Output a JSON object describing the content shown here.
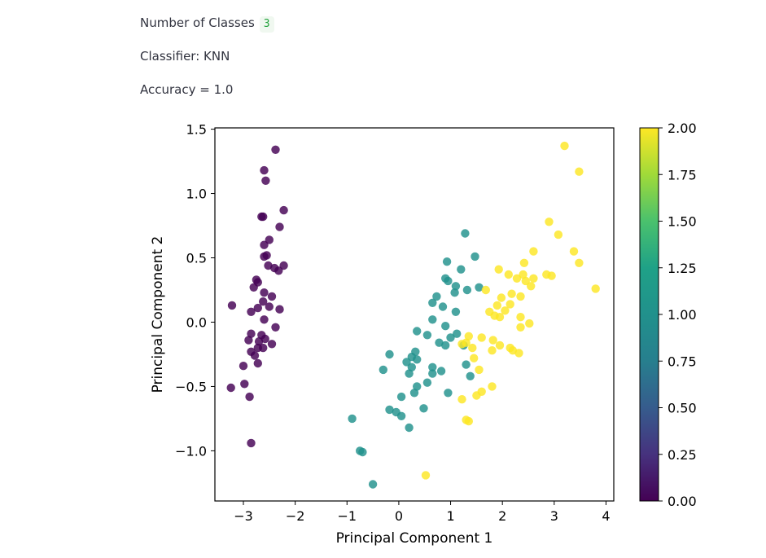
{
  "controls": {
    "classes_label": "Number of Classes",
    "classes_value": "3",
    "classifier_text": "Classifier: KNN",
    "accuracy_text": "Accuracy = 1.0"
  },
  "chart_data": {
    "type": "scatter",
    "title": "",
    "xlabel": "Principal Component 1",
    "ylabel": "Principal Component 2",
    "xlim": [
      -3.55,
      4.15
    ],
    "ylim": [
      -1.39,
      1.51
    ],
    "xticks": [
      -3,
      -2,
      -1,
      0,
      1,
      2,
      3,
      4
    ],
    "xtick_labels": [
      "−3",
      "−2",
      "−1",
      "0",
      "1",
      "2",
      "3",
      "4"
    ],
    "yticks": [
      1.5,
      1.0,
      0.5,
      0.0,
      -0.5,
      -1.0
    ],
    "ytick_labels": [
      "1.5",
      "1.0",
      "0.5",
      "0.0",
      "−0.5",
      "−1.0"
    ],
    "grid": false,
    "colormap": "viridis",
    "colors": {
      "class_0": "#440154",
      "class_1": "#21918c",
      "class_2": "#fde725"
    },
    "colorbar": {
      "range": [
        0.0,
        2.0
      ],
      "ticks": [
        2.0,
        1.75,
        1.5,
        1.25,
        1.0,
        0.75,
        0.5,
        0.25,
        0.0
      ],
      "tick_labels": [
        "2.00",
        "1.75",
        "1.50",
        "1.25",
        "1.00",
        "0.75",
        "0.50",
        "0.25",
        "0.00"
      ]
    },
    "series": [
      {
        "class": 0,
        "points": [
          [
            -2.38,
            1.34
          ],
          [
            -2.6,
            1.18
          ],
          [
            -2.57,
            1.1
          ],
          [
            -2.65,
            0.82
          ],
          [
            -2.62,
            0.82
          ],
          [
            -2.22,
            0.87
          ],
          [
            -2.3,
            0.74
          ],
          [
            -2.5,
            0.64
          ],
          [
            -2.6,
            0.6
          ],
          [
            -2.55,
            0.52
          ],
          [
            -2.6,
            0.51
          ],
          [
            -2.52,
            0.44
          ],
          [
            -2.4,
            0.42
          ],
          [
            -2.32,
            0.4
          ],
          [
            -2.22,
            0.44
          ],
          [
            -2.75,
            0.33
          ],
          [
            -2.8,
            0.27
          ],
          [
            -2.72,
            0.31
          ],
          [
            -2.6,
            0.23
          ],
          [
            -2.45,
            0.2
          ],
          [
            -2.62,
            0.16
          ],
          [
            -2.5,
            0.12
          ],
          [
            -2.3,
            0.1
          ],
          [
            -2.72,
            0.11
          ],
          [
            -2.85,
            0.08
          ],
          [
            -3.22,
            0.13
          ],
          [
            -2.6,
            0.02
          ],
          [
            -2.38,
            -0.04
          ],
          [
            -2.85,
            -0.09
          ],
          [
            -2.65,
            -0.1
          ],
          [
            -2.9,
            -0.14
          ],
          [
            -2.7,
            -0.15
          ],
          [
            -2.58,
            -0.13
          ],
          [
            -2.45,
            -0.17
          ],
          [
            -2.72,
            -0.2
          ],
          [
            -2.62,
            -0.2
          ],
          [
            -2.85,
            -0.23
          ],
          [
            -2.78,
            -0.26
          ],
          [
            -3.0,
            -0.34
          ],
          [
            -2.72,
            -0.32
          ],
          [
            -3.24,
            -0.51
          ],
          [
            -2.98,
            -0.48
          ],
          [
            -2.88,
            -0.58
          ],
          [
            -2.85,
            -0.94
          ]
        ]
      },
      {
        "class": 1,
        "points": [
          [
            1.28,
            0.69
          ],
          [
            1.47,
            0.51
          ],
          [
            0.93,
            0.47
          ],
          [
            1.2,
            0.41
          ],
          [
            0.9,
            0.34
          ],
          [
            0.95,
            0.32
          ],
          [
            1.1,
            0.28
          ],
          [
            1.32,
            0.25
          ],
          [
            1.55,
            0.27
          ],
          [
            1.08,
            0.23
          ],
          [
            0.73,
            0.2
          ],
          [
            0.65,
            0.15
          ],
          [
            0.85,
            0.12
          ],
          [
            1.1,
            0.08
          ],
          [
            0.65,
            0.02
          ],
          [
            0.9,
            -0.03
          ],
          [
            0.35,
            -0.07
          ],
          [
            0.55,
            -0.1
          ],
          [
            1.0,
            -0.12
          ],
          [
            1.12,
            -0.09
          ],
          [
            0.78,
            -0.16
          ],
          [
            0.9,
            -0.18
          ],
          [
            1.25,
            -0.18
          ],
          [
            0.32,
            -0.23
          ],
          [
            -0.18,
            -0.25
          ],
          [
            0.25,
            -0.27
          ],
          [
            0.35,
            -0.29
          ],
          [
            0.15,
            -0.31
          ],
          [
            1.3,
            -0.33
          ],
          [
            0.65,
            -0.35
          ],
          [
            0.25,
            -0.35
          ],
          [
            -0.3,
            -0.37
          ],
          [
            0.2,
            -0.4
          ],
          [
            0.65,
            -0.4
          ],
          [
            0.82,
            -0.38
          ],
          [
            1.38,
            -0.42
          ],
          [
            0.55,
            -0.47
          ],
          [
            0.35,
            -0.5
          ],
          [
            0.3,
            -0.55
          ],
          [
            0.95,
            -0.55
          ],
          [
            0.05,
            -0.58
          ],
          [
            0.48,
            -0.67
          ],
          [
            -0.18,
            -0.68
          ],
          [
            -0.05,
            -0.7
          ],
          [
            0.05,
            -0.73
          ],
          [
            0.2,
            -0.82
          ],
          [
            -0.9,
            -0.75
          ],
          [
            -0.75,
            -1.0
          ],
          [
            -0.7,
            -1.01
          ],
          [
            -0.5,
            -1.26
          ]
        ]
      },
      {
        "class": 2,
        "points": [
          [
            3.2,
            1.37
          ],
          [
            3.48,
            1.17
          ],
          [
            2.9,
            0.78
          ],
          [
            3.08,
            0.68
          ],
          [
            2.6,
            0.55
          ],
          [
            3.38,
            0.55
          ],
          [
            3.48,
            0.46
          ],
          [
            2.42,
            0.46
          ],
          [
            1.93,
            0.41
          ],
          [
            2.12,
            0.37
          ],
          [
            2.4,
            0.37
          ],
          [
            2.28,
            0.34
          ],
          [
            2.45,
            0.32
          ],
          [
            2.6,
            0.34
          ],
          [
            2.85,
            0.37
          ],
          [
            2.95,
            0.36
          ],
          [
            3.8,
            0.26
          ],
          [
            1.68,
            0.25
          ],
          [
            2.55,
            0.28
          ],
          [
            2.18,
            0.22
          ],
          [
            1.98,
            0.19
          ],
          [
            2.35,
            0.2
          ],
          [
            1.9,
            0.13
          ],
          [
            2.15,
            0.14
          ],
          [
            2.05,
            0.09
          ],
          [
            1.75,
            0.08
          ],
          [
            1.85,
            0.05
          ],
          [
            1.95,
            0.04
          ],
          [
            2.35,
            0.04
          ],
          [
            2.52,
            -0.01
          ],
          [
            2.35,
            -0.04
          ],
          [
            1.6,
            -0.12
          ],
          [
            1.82,
            -0.14
          ],
          [
            1.35,
            -0.11
          ],
          [
            1.3,
            -0.16
          ],
          [
            1.22,
            -0.17
          ],
          [
            1.42,
            -0.2
          ],
          [
            1.95,
            -0.18
          ],
          [
            2.15,
            -0.2
          ],
          [
            2.2,
            -0.22
          ],
          [
            1.8,
            -0.22
          ],
          [
            2.32,
            -0.24
          ],
          [
            1.45,
            -0.28
          ],
          [
            1.55,
            -0.37
          ],
          [
            1.8,
            -0.5
          ],
          [
            1.5,
            -0.57
          ],
          [
            1.6,
            -0.54
          ],
          [
            1.22,
            -0.6
          ],
          [
            1.3,
            -0.76
          ],
          [
            1.35,
            -0.77
          ],
          [
            0.52,
            -1.19
          ]
        ]
      }
    ]
  }
}
